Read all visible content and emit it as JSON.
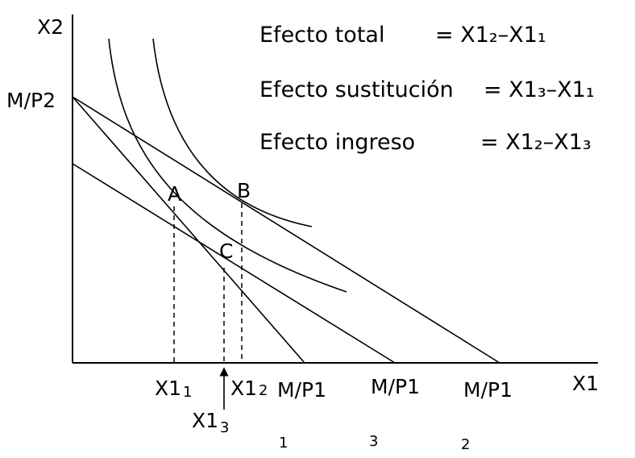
{
  "axes": {
    "y_label": "X2",
    "x_label": "X1"
  },
  "intercepts": {
    "y_intercept": "M/P2",
    "x_intercepts": [
      {
        "label": "M/P1",
        "index": "1"
      },
      {
        "label": "M/P1",
        "index": "3"
      },
      {
        "label": "M/P1",
        "index": "2"
      }
    ]
  },
  "points": {
    "a": "A",
    "b": "B",
    "c": "C"
  },
  "x_markers": [
    {
      "base": "X1",
      "sub": "1"
    },
    {
      "base": "X1",
      "sub": "2"
    },
    {
      "base": "X1",
      "sub": "3"
    }
  ],
  "equations": [
    {
      "name": "Efecto total",
      "rhs": "= X1₂–X1₁"
    },
    {
      "name": "Efecto sustitución",
      "rhs": "= X1₃–X1₁"
    },
    {
      "name": "Efecto ingreso",
      "rhs": "= X1₂–X1₃"
    }
  ]
}
